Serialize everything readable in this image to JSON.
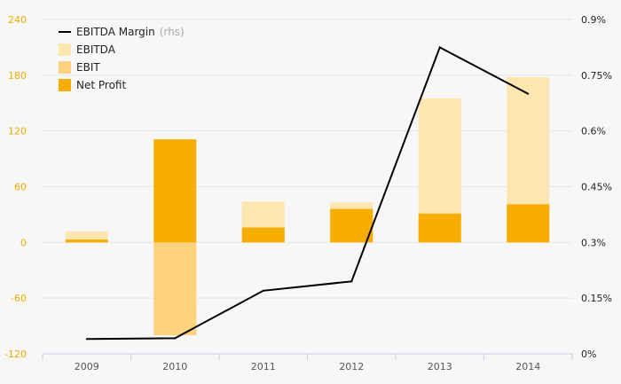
{
  "chart_data": {
    "type": "bar",
    "categories": [
      "2009",
      "2010",
      "2011",
      "2012",
      "2013",
      "2014"
    ],
    "series": [
      {
        "name": "EBITDA",
        "type": "bar",
        "axis": "left",
        "color": "#fde6b0",
        "values": [
          12,
          -100,
          44,
          43,
          155,
          178
        ]
      },
      {
        "name": "EBIT",
        "type": "bar",
        "axis": "left",
        "color": "#fdd27c",
        "values": [
          2,
          -100,
          15,
          35,
          30,
          40
        ]
      },
      {
        "name": "Net Profit",
        "type": "bar",
        "axis": "left",
        "color": "#f6ad00",
        "values": [
          3,
          111,
          16,
          36,
          31,
          41
        ]
      },
      {
        "name": "EBITDA Margin",
        "name_suffix": "(rhs)",
        "type": "line",
        "axis": "right",
        "color": "#000000",
        "values": [
          0.04,
          0.042,
          0.17,
          0.195,
          0.825,
          0.7
        ]
      }
    ],
    "left_axis": {
      "ylim": [
        -120,
        240
      ],
      "ticks": [
        240,
        180,
        120,
        60,
        0,
        -60,
        -120
      ]
    },
    "right_axis": {
      "ylim": [
        0,
        0.9
      ],
      "ticks": [
        "0.9%",
        "0.75%",
        "0.6%",
        "0.45%",
        "0.3%",
        "0.15%",
        "0%"
      ]
    },
    "legend": {
      "position": "top-left"
    },
    "grid": true
  }
}
